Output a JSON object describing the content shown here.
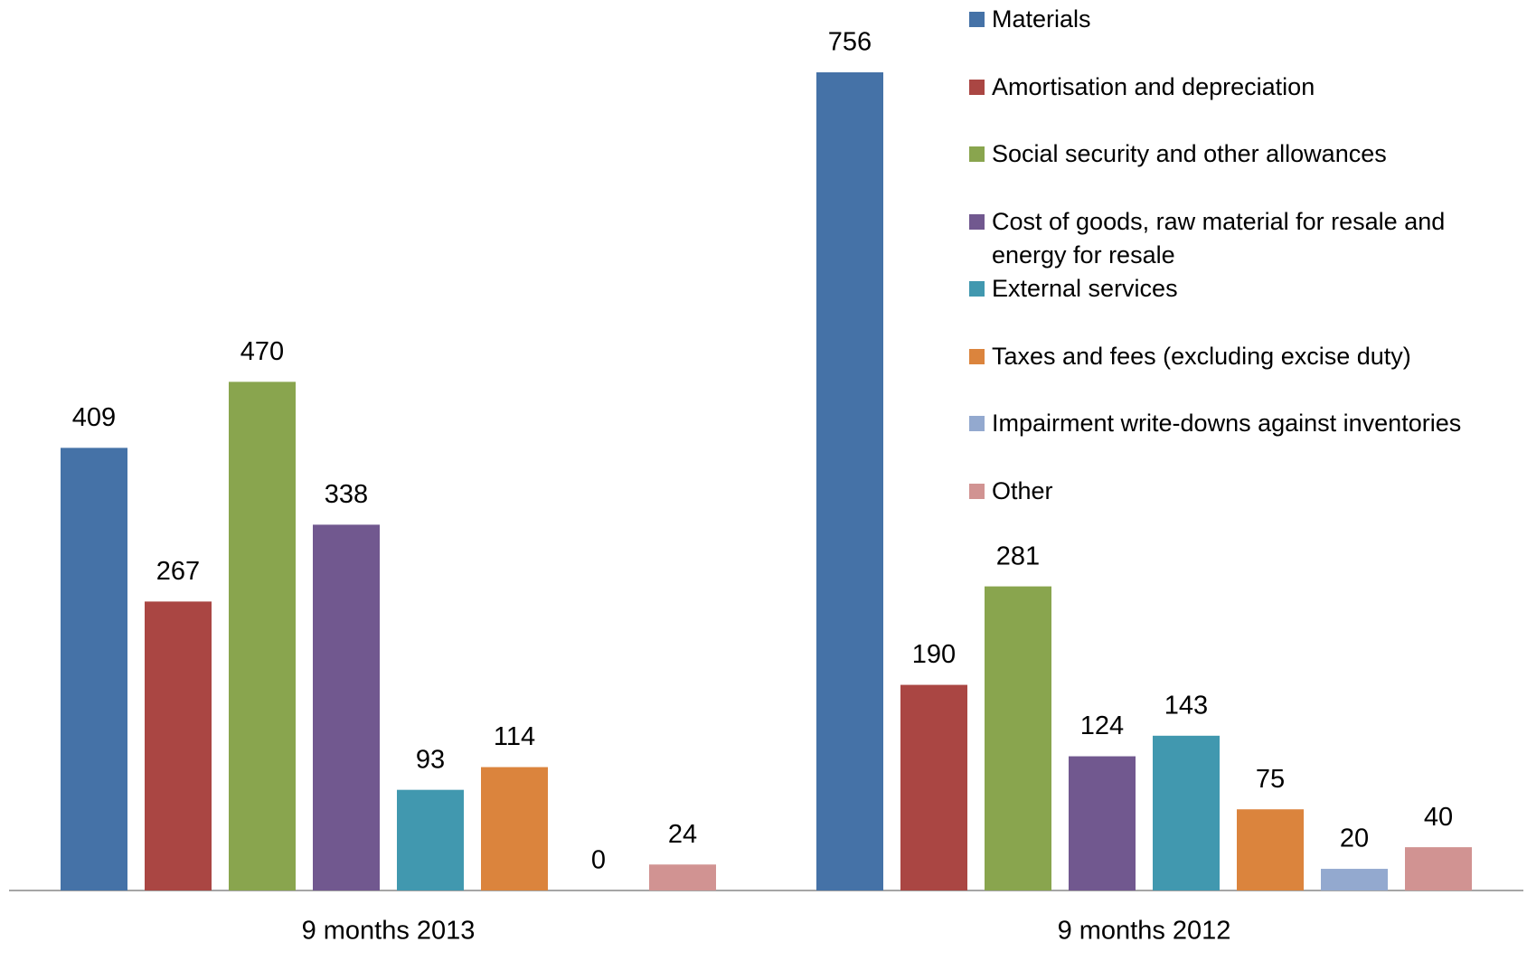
{
  "chart_data": {
    "type": "bar",
    "categories": [
      "9 months 2013",
      "9 months 2012"
    ],
    "series": [
      {
        "name": "Materials",
        "color": "#4572a7",
        "values": [
          409,
          756
        ]
      },
      {
        "name": "Amortisation and depreciation",
        "color": "#aa4643",
        "values": [
          267,
          190
        ]
      },
      {
        "name": "Social security and other allowances",
        "color": "#89a54e",
        "values": [
          470,
          281
        ]
      },
      {
        "name": "Cost of goods, raw material for resale and energy for resale",
        "color": "#71588f",
        "values": [
          338,
          124
        ]
      },
      {
        "name": "External services",
        "color": "#4198af",
        "values": [
          93,
          143
        ]
      },
      {
        "name": "Taxes and fees (excluding excise duty)",
        "color": "#db843d",
        "values": [
          114,
          75
        ]
      },
      {
        "name": "Impairment write-downs against inventories",
        "color": "#93a9cf",
        "values": [
          0,
          20
        ]
      },
      {
        "name": "Other",
        "color": "#d19392",
        "values": [
          24,
          40
        ]
      }
    ],
    "legend": "top-right"
  }
}
